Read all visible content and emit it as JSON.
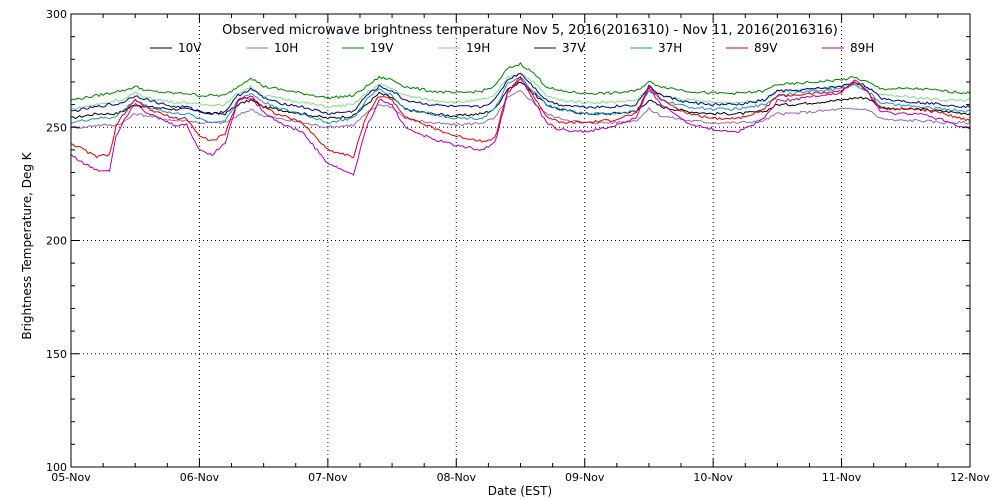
{
  "chart_data": {
    "type": "line",
    "title": "Observed microwave brightness temperature Nov  5, 2016(2016310) - Nov 11, 2016(2016316)",
    "xlabel": "Date (EST)",
    "ylabel": "Brightness Temperature, Deg K",
    "xlim": [
      0,
      7
    ],
    "ylim": [
      100,
      300
    ],
    "x_unit": "days from 05-Nov 00:00 EST",
    "x_ticks": [
      {
        "x": 0,
        "label": "05-Nov"
      },
      {
        "x": 1,
        "label": "06-Nov"
      },
      {
        "x": 2,
        "label": "07-Nov"
      },
      {
        "x": 3,
        "label": "08-Nov"
      },
      {
        "x": 4,
        "label": "09-Nov"
      },
      {
        "x": 5,
        "label": "10-Nov"
      },
      {
        "x": 6,
        "label": "11-Nov"
      },
      {
        "x": 7,
        "label": "12-Nov"
      }
    ],
    "y_ticks": [
      100,
      150,
      200,
      250,
      300
    ],
    "y_minor_step": 10,
    "x_minor_per_major": 4,
    "grid": true,
    "legend": "top",
    "x": [
      0,
      0.1,
      0.2,
      0.3,
      0.35,
      0.4,
      0.5,
      0.6,
      0.8,
      0.9,
      1.0,
      1.1,
      1.2,
      1.3,
      1.4,
      1.5,
      1.6,
      1.7,
      1.8,
      2.0,
      2.2,
      2.3,
      2.4,
      2.5,
      2.6,
      2.8,
      3.0,
      3.2,
      3.3,
      3.4,
      3.5,
      3.6,
      3.7,
      3.8,
      4.0,
      4.2,
      4.4,
      4.5,
      4.6,
      4.8,
      5.0,
      5.2,
      5.4,
      5.5,
      5.6,
      5.8,
      6.0,
      6.1,
      6.2,
      6.3,
      6.4,
      6.6,
      6.8,
      7.0
    ],
    "series": [
      {
        "name": "10V",
        "color": "#000000",
        "values": [
          254,
          255,
          256,
          256,
          256,
          257,
          260,
          259,
          258,
          258,
          257,
          256,
          256,
          260,
          262,
          259,
          258,
          257,
          256,
          254,
          255,
          260,
          265,
          263,
          258,
          256,
          255,
          256,
          258,
          267,
          270,
          265,
          260,
          258,
          256,
          256,
          257,
          262,
          259,
          257,
          256,
          256,
          257,
          260,
          260,
          261,
          262,
          263,
          263,
          259,
          258,
          258,
          257,
          256
        ]
      },
      {
        "name": "10H",
        "color": "#9a6aa6",
        "values": [
          250,
          250,
          251,
          251,
          251,
          252,
          256,
          255,
          253,
          253,
          252,
          252,
          252,
          255,
          258,
          255,
          254,
          253,
          252,
          250,
          251,
          256,
          260,
          259,
          254,
          252,
          251,
          252,
          254,
          263,
          266,
          261,
          256,
          254,
          252,
          252,
          253,
          258,
          255,
          253,
          252,
          252,
          253,
          256,
          256,
          257,
          258,
          258,
          258,
          254,
          253,
          253,
          252,
          252
        ]
      },
      {
        "name": "19V",
        "color": "#008000",
        "values": [
          262,
          263,
          264,
          265,
          266,
          266,
          268,
          266,
          265,
          265,
          264,
          264,
          264,
          268,
          272,
          268,
          267,
          266,
          265,
          263,
          264,
          268,
          272,
          271,
          268,
          266,
          265,
          266,
          268,
          276,
          278,
          274,
          268,
          266,
          265,
          265,
          266,
          270,
          268,
          266,
          265,
          265,
          266,
          269,
          269,
          270,
          271,
          272,
          270,
          267,
          267,
          267,
          266,
          265
        ]
      },
      {
        "name": "19H",
        "color": "#7ee07e",
        "values": [
          258,
          259,
          260,
          261,
          262,
          262,
          265,
          263,
          261,
          261,
          260,
          260,
          260,
          265,
          268,
          264,
          263,
          262,
          261,
          259,
          260,
          265,
          269,
          267,
          264,
          262,
          261,
          262,
          264,
          272,
          274,
          270,
          264,
          262,
          261,
          261,
          262,
          267,
          264,
          262,
          261,
          261,
          262,
          266,
          266,
          267,
          268,
          269,
          267,
          264,
          264,
          263,
          262,
          262
        ]
      },
      {
        "name": "37V",
        "color": "#00008b",
        "values": [
          257,
          258,
          259,
          260,
          260,
          261,
          264,
          262,
          259,
          259,
          257,
          256,
          257,
          264,
          267,
          263,
          261,
          260,
          259,
          256,
          257,
          264,
          268,
          266,
          262,
          260,
          259,
          259,
          262,
          271,
          274,
          268,
          262,
          260,
          259,
          259,
          260,
          268,
          264,
          261,
          260,
          260,
          262,
          266,
          266,
          267,
          268,
          270,
          268,
          263,
          262,
          261,
          260,
          259
        ]
      },
      {
        "name": "37H",
        "color": "#1e90c8",
        "values": [
          252,
          253,
          254,
          254,
          255,
          257,
          262,
          259,
          256,
          256,
          254,
          252,
          253,
          262,
          265,
          261,
          259,
          257,
          256,
          252,
          254,
          262,
          267,
          264,
          258,
          256,
          254,
          254,
          258,
          269,
          272,
          266,
          260,
          258,
          256,
          256,
          257,
          266,
          262,
          259,
          258,
          258,
          260,
          264,
          265,
          266,
          267,
          269,
          266,
          261,
          260,
          259,
          258,
          257
        ]
      },
      {
        "name": "89V",
        "color": "#e00000",
        "values": [
          243,
          240,
          237,
          238,
          250,
          255,
          262,
          258,
          254,
          254,
          246,
          244,
          247,
          262,
          264,
          259,
          256,
          254,
          252,
          240,
          237,
          255,
          264,
          262,
          255,
          250,
          246,
          244,
          245,
          266,
          272,
          264,
          255,
          252,
          252,
          253,
          256,
          268,
          262,
          256,
          254,
          254,
          258,
          264,
          264,
          265,
          266,
          270,
          266,
          259,
          258,
          258,
          256,
          253
        ]
      },
      {
        "name": "89H",
        "color": "#b000b0",
        "values": [
          238,
          234,
          231,
          231,
          246,
          252,
          261,
          256,
          251,
          251,
          240,
          238,
          243,
          262,
          263,
          257,
          253,
          250,
          248,
          234,
          229,
          250,
          262,
          260,
          250,
          245,
          242,
          240,
          243,
          265,
          272,
          262,
          252,
          249,
          248,
          250,
          254,
          267,
          260,
          252,
          249,
          248,
          254,
          262,
          262,
          264,
          265,
          271,
          266,
          257,
          256,
          256,
          253,
          249
        ]
      }
    ]
  }
}
